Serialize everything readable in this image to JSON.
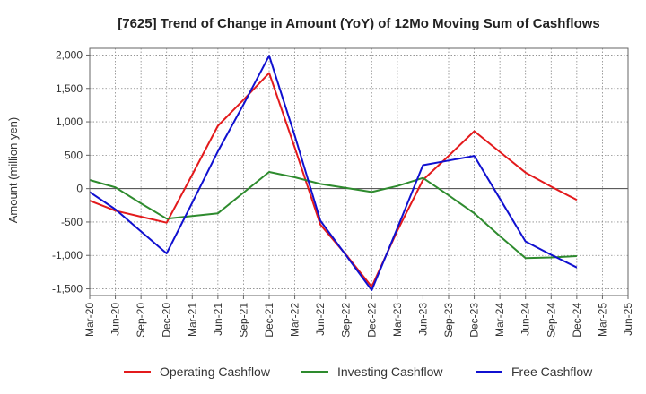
{
  "chart_data": {
    "type": "line",
    "title": "[7625]  Trend of Change in Amount (YoY) of 12Mo Moving Sum of Cashflows",
    "xlabel": "",
    "ylabel": "Amount (million yen)",
    "ylim": [
      -1600,
      2100
    ],
    "yticks": [
      2000,
      1500,
      1000,
      500,
      0,
      -500,
      -1000,
      -1500
    ],
    "ytick_labels": [
      "2,000",
      "1,500",
      "1,000",
      "500",
      "0",
      "-500",
      "-1,000",
      "-1,500"
    ],
    "categories": [
      "Mar-20",
      "Jun-20",
      "Sep-20",
      "Dec-20",
      "Mar-21",
      "Jun-21",
      "Sep-21",
      "Dec-21",
      "Mar-22",
      "Jun-22",
      "Sep-22",
      "Dec-22",
      "Mar-23",
      "Jun-23",
      "Sep-23",
      "Dec-23",
      "Mar-24",
      "Jun-24",
      "Sep-24",
      "Dec-24",
      "Mar-25",
      "Jun-25"
    ],
    "grid": true,
    "legend_position": "bottom",
    "series": [
      {
        "name": "Operating Cashflow",
        "color": "#e31a1c",
        "values": [
          -180,
          -330,
          -420,
          -510,
          210,
          940,
          1330,
          1730,
          610,
          -540,
          -990,
          -1470,
          -630,
          130,
          490,
          860,
          550,
          240,
          30,
          -170,
          null,
          null
        ]
      },
      {
        "name": "Investing Cashflow",
        "color": "#2e8b2e",
        "values": [
          130,
          20,
          -220,
          -450,
          -410,
          -370,
          -60,
          250,
          170,
          70,
          10,
          -50,
          40,
          160,
          -100,
          -370,
          -710,
          -1040,
          -1030,
          -1010,
          null,
          null
        ]
      },
      {
        "name": "Free Cashflow",
        "color": "#1010d0",
        "values": [
          -50,
          -310,
          -640,
          -970,
          -210,
          560,
          1260,
          1990,
          790,
          -480,
          -1000,
          -1520,
          -590,
          350,
          420,
          490,
          -150,
          -790,
          -990,
          -1180,
          null,
          null
        ]
      }
    ]
  }
}
